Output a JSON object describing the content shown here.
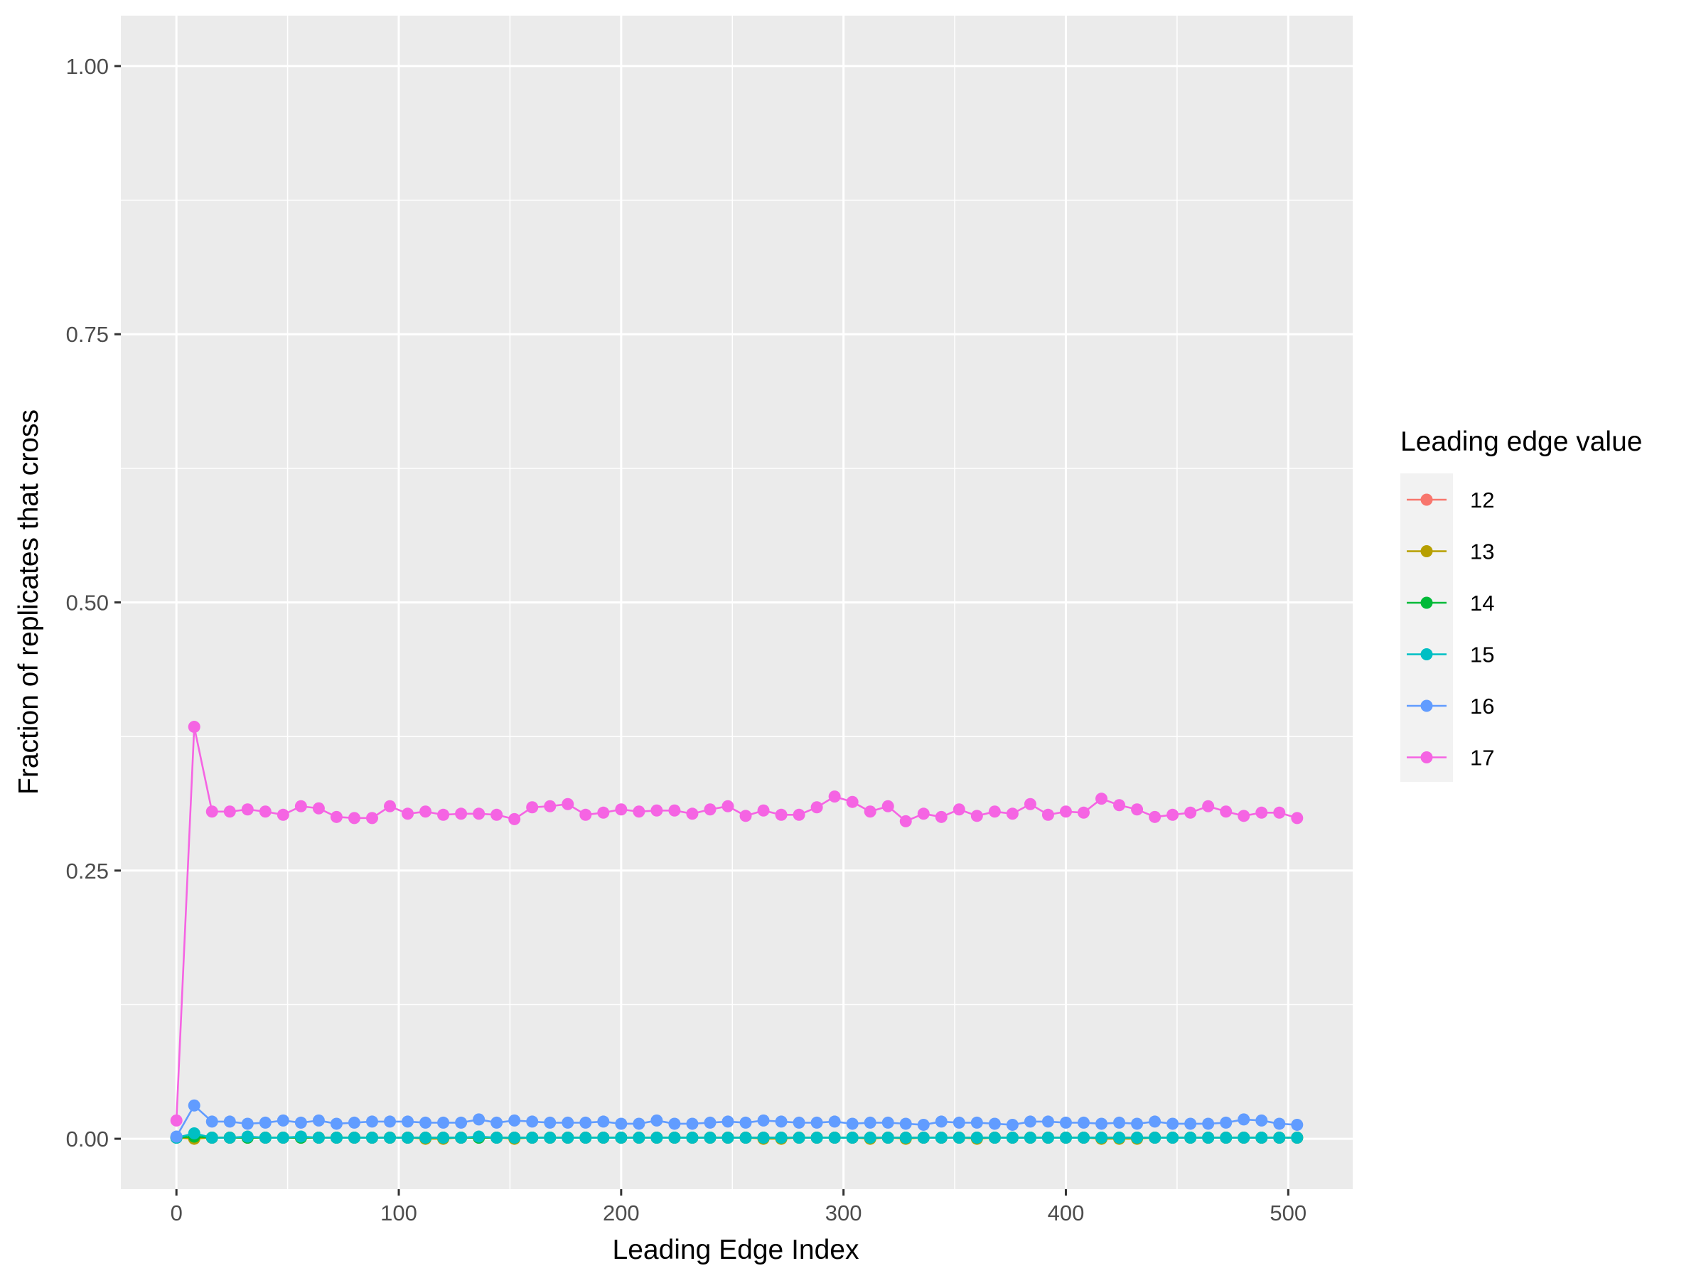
{
  "chart_data": {
    "type": "line",
    "title": "",
    "xlabel": "Leading Edge Index",
    "ylabel": "Fraction of replicates that cross",
    "xlim": [
      -25,
      529
    ],
    "ylim": [
      -0.047,
      1.047
    ],
    "x_ticks": [
      0,
      100,
      200,
      300,
      400,
      500
    ],
    "x_tick_labels": [
      "0",
      "100",
      "200",
      "300",
      "400",
      "500"
    ],
    "y_ticks": [
      0,
      0.25,
      0.5,
      0.75,
      1.0
    ],
    "y_tick_labels": [
      "0.00",
      "0.25",
      "0.50",
      "0.75",
      "1.00"
    ],
    "grid": true,
    "background": "#EBEBEB",
    "legend": {
      "title": "Leading edge value",
      "position": "right",
      "entries": [
        "12",
        "13",
        "14",
        "15",
        "16",
        "17"
      ]
    },
    "x": [
      0,
      8,
      16,
      24,
      32,
      40,
      48,
      56,
      64,
      72,
      80,
      88,
      96,
      104,
      112,
      120,
      128,
      136,
      144,
      152,
      160,
      168,
      176,
      184,
      192,
      200,
      208,
      216,
      224,
      232,
      240,
      248,
      256,
      264,
      272,
      280,
      288,
      296,
      304,
      312,
      320,
      328,
      336,
      344,
      352,
      360,
      368,
      376,
      384,
      392,
      400,
      408,
      416,
      424,
      432,
      440,
      448,
      456,
      464,
      472,
      480,
      488,
      496,
      504
    ],
    "series": [
      {
        "name": "12",
        "color": "#F8766D",
        "values": [
          0.001,
          0.001,
          0.001,
          0.001,
          0.001,
          0.001,
          0.001,
          0.001,
          0.001,
          0.001,
          0.001,
          0.001,
          0.001,
          0.001,
          0.001,
          0.001,
          0.001,
          0.001,
          0.001,
          0.001,
          0.001,
          0.001,
          0.001,
          0.001,
          0.001,
          0.001,
          0.001,
          0.001,
          0.001,
          0.001,
          0.001,
          0.001,
          0.001,
          0.001,
          0.001,
          0.001,
          0.001,
          0.001,
          0.001,
          0.001,
          0.001,
          0.001,
          0.001,
          0.001,
          0.001,
          0.001,
          0.001,
          0.001,
          0.001,
          0.001,
          0.001,
          0.001,
          0.001,
          0.001,
          0.001,
          0.001,
          0.001,
          0.001,
          0.001,
          0.001,
          0.001,
          0.001,
          0.001,
          0.001
        ]
      },
      {
        "name": "13",
        "color": "#B79F00",
        "values": [
          0.001,
          0.0,
          0.001,
          0.001,
          0.001,
          0.001,
          0.001,
          0.001,
          0.001,
          0.001,
          0.001,
          0.001,
          0.001,
          0.001,
          0.0,
          0.0,
          0.001,
          0.001,
          0.001,
          0.0,
          0.001,
          0.001,
          0.001,
          0.001,
          0.001,
          0.001,
          0.001,
          0.001,
          0.001,
          0.001,
          0.001,
          0.001,
          0.001,
          0.0,
          0.0,
          0.001,
          0.001,
          0.001,
          0.001,
          0.0,
          0.001,
          0.0,
          0.001,
          0.001,
          0.001,
          0.0,
          0.001,
          0.001,
          0.001,
          0.001,
          0.001,
          0.001,
          0.0,
          0.0,
          0.0,
          0.001,
          0.001,
          0.001,
          0.001,
          0.001,
          0.001,
          0.001,
          0.001,
          0.001
        ]
      },
      {
        "name": "14",
        "color": "#00BA38",
        "values": [
          0.001,
          0.002,
          0.001,
          0.001,
          0.001,
          0.001,
          0.001,
          0.001,
          0.001,
          0.001,
          0.001,
          0.001,
          0.001,
          0.001,
          0.001,
          0.001,
          0.001,
          0.001,
          0.001,
          0.001,
          0.001,
          0.001,
          0.001,
          0.001,
          0.001,
          0.001,
          0.001,
          0.001,
          0.001,
          0.001,
          0.001,
          0.001,
          0.001,
          0.001,
          0.001,
          0.001,
          0.001,
          0.001,
          0.001,
          0.001,
          0.001,
          0.001,
          0.001,
          0.001,
          0.001,
          0.001,
          0.001,
          0.001,
          0.001,
          0.001,
          0.001,
          0.001,
          0.001,
          0.001,
          0.001,
          0.001,
          0.001,
          0.001,
          0.001,
          0.001,
          0.001,
          0.001,
          0.001,
          0.001
        ]
      },
      {
        "name": "15",
        "color": "#00BFC4",
        "values": [
          0.001,
          0.005,
          0.001,
          0.001,
          0.002,
          0.001,
          0.001,
          0.002,
          0.001,
          0.001,
          0.001,
          0.001,
          0.001,
          0.001,
          0.001,
          0.001,
          0.001,
          0.002,
          0.001,
          0.001,
          0.001,
          0.001,
          0.001,
          0.001,
          0.001,
          0.001,
          0.001,
          0.001,
          0.001,
          0.001,
          0.001,
          0.001,
          0.001,
          0.001,
          0.001,
          0.001,
          0.001,
          0.001,
          0.001,
          0.001,
          0.001,
          0.001,
          0.001,
          0.001,
          0.001,
          0.001,
          0.001,
          0.001,
          0.001,
          0.001,
          0.001,
          0.001,
          0.001,
          0.001,
          0.001,
          0.001,
          0.001,
          0.001,
          0.001,
          0.001,
          0.001,
          0.001,
          0.001,
          0.001
        ]
      },
      {
        "name": "16",
        "color": "#619CFF",
        "values": [
          0.002,
          0.031,
          0.016,
          0.016,
          0.014,
          0.015,
          0.017,
          0.015,
          0.017,
          0.014,
          0.015,
          0.016,
          0.016,
          0.016,
          0.015,
          0.015,
          0.015,
          0.018,
          0.015,
          0.017,
          0.016,
          0.015,
          0.015,
          0.015,
          0.016,
          0.014,
          0.014,
          0.017,
          0.014,
          0.014,
          0.015,
          0.016,
          0.015,
          0.017,
          0.016,
          0.015,
          0.015,
          0.016,
          0.014,
          0.015,
          0.015,
          0.014,
          0.013,
          0.016,
          0.015,
          0.015,
          0.014,
          0.013,
          0.016,
          0.016,
          0.015,
          0.015,
          0.014,
          0.015,
          0.014,
          0.016,
          0.014,
          0.014,
          0.014,
          0.015,
          0.018,
          0.017,
          0.014,
          0.013
        ]
      },
      {
        "name": "17",
        "color": "#F564E3",
        "values": [
          0.017,
          0.384,
          0.305,
          0.305,
          0.307,
          0.305,
          0.302,
          0.31,
          0.308,
          0.3,
          0.299,
          0.299,
          0.31,
          0.303,
          0.305,
          0.302,
          0.303,
          0.303,
          0.302,
          0.298,
          0.309,
          0.31,
          0.312,
          0.302,
          0.304,
          0.307,
          0.305,
          0.306,
          0.306,
          0.303,
          0.307,
          0.31,
          0.301,
          0.306,
          0.302,
          0.302,
          0.309,
          0.319,
          0.314,
          0.305,
          0.31,
          0.296,
          0.303,
          0.3,
          0.307,
          0.301,
          0.305,
          0.303,
          0.312,
          0.302,
          0.305,
          0.304,
          0.317,
          0.311,
          0.307,
          0.3,
          0.302,
          0.304,
          0.31,
          0.305,
          0.301,
          0.304,
          0.304,
          0.299
        ]
      }
    ]
  }
}
